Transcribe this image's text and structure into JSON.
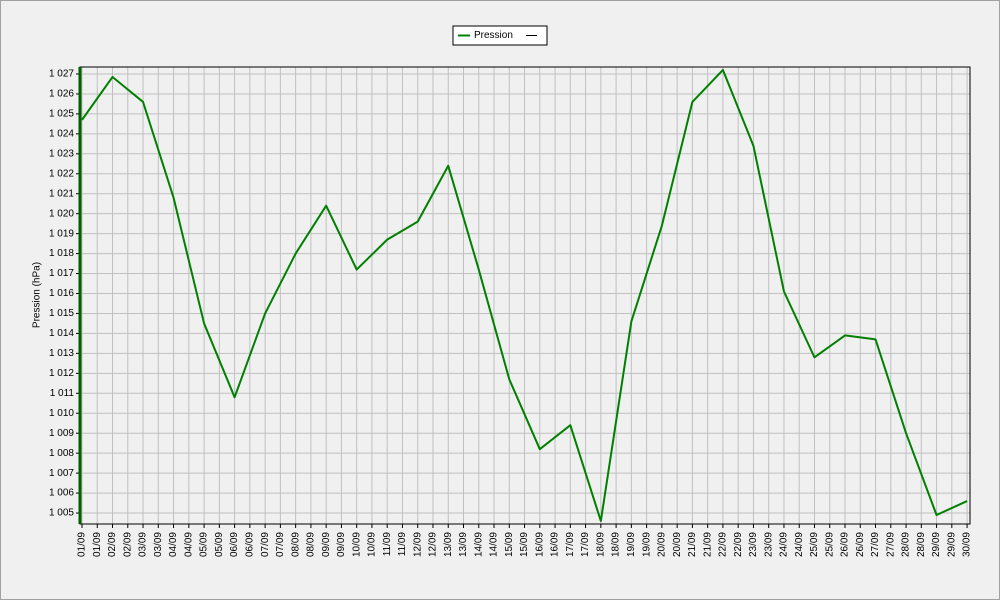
{
  "chart_data": {
    "type": "line",
    "y_label": "Pression (hPa)",
    "categories": [
      "01/09",
      "02/09",
      "03/09",
      "04/09",
      "05/09",
      "06/09",
      "07/09",
      "08/09",
      "09/09",
      "10/09",
      "11/09",
      "12/09",
      "13/09",
      "14/09",
      "15/09",
      "16/09",
      "17/09",
      "18/09",
      "19/09",
      "20/09",
      "21/09",
      "22/09",
      "23/09",
      "24/09",
      "25/09",
      "26/09",
      "27/09",
      "28/09",
      "29/09",
      "30/09"
    ],
    "series": [
      {
        "name": "Pression",
        "color": "#008000",
        "values": [
          1024.7,
          1026.85,
          1025.6,
          1020.8,
          1014.5,
          1010.8,
          1015.0,
          1018.0,
          1020.4,
          1017.2,
          1018.7,
          1019.6,
          1022.4,
          1017.2,
          1011.7,
          1008.2,
          1009.4,
          1004.6,
          1014.6,
          1019.4,
          1025.6,
          1027.2,
          1023.4,
          1016.1,
          1012.8,
          1013.9,
          1013.7,
          1009.0,
          1004.9,
          1005.6
        ]
      }
    ],
    "ylim": [
      1004.45,
      1027.35
    ],
    "yticks": [
      {
        "value": 1005,
        "label": "1 005"
      },
      {
        "value": 1006,
        "label": "1 006"
      },
      {
        "value": 1007,
        "label": "1 007"
      },
      {
        "value": 1008,
        "label": "1 008"
      },
      {
        "value": 1009,
        "label": "1 009"
      },
      {
        "value": 1010,
        "label": "1 010"
      },
      {
        "value": 1011,
        "label": "1 011"
      },
      {
        "value": 1012,
        "label": "1 012"
      },
      {
        "value": 1013,
        "label": "1 013"
      },
      {
        "value": 1014,
        "label": "1 014"
      },
      {
        "value": 1015,
        "label": "1 015"
      },
      {
        "value": 1016,
        "label": "1 016"
      },
      {
        "value": 1017,
        "label": "1 017"
      },
      {
        "value": 1018,
        "label": "1 018"
      },
      {
        "value": 1019,
        "label": "1 019"
      },
      {
        "value": 1020,
        "label": "1 020"
      },
      {
        "value": 1021,
        "label": "1 021"
      },
      {
        "value": 1022,
        "label": "1 022"
      },
      {
        "value": 1023,
        "label": "1 023"
      },
      {
        "value": 1024,
        "label": "1 024"
      },
      {
        "value": 1025,
        "label": "1 025"
      },
      {
        "value": 1026,
        "label": "1 026"
      },
      {
        "value": 1027,
        "label": "1 027"
      }
    ],
    "grid": true
  }
}
